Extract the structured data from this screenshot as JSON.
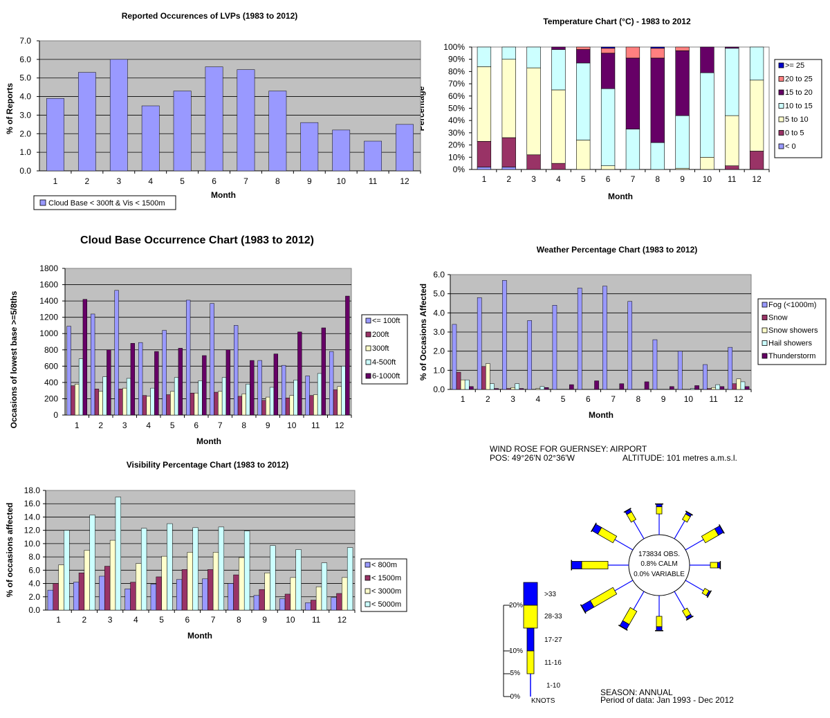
{
  "colors": {
    "plot_bg": "#C0C0C0",
    "periwinkle": "#9999FF",
    "maroon": "#993366",
    "ivory": "#FFFFCC",
    "light_cyan": "#CCFFFF",
    "dark_purple": "#660066",
    "salmon": "#FF8080",
    "navy": "#0000CC",
    "wind_blue": "#0000FF",
    "wind_yellow": "#FFFF00"
  },
  "chart_data": [
    {
      "id": "lvp",
      "type": "bar",
      "title": "Reported Occurences of LVPs (1983 to 2012)",
      "xlabel": "Month",
      "ylabel": "% of Reports",
      "categories": [
        "1",
        "2",
        "3",
        "4",
        "5",
        "6",
        "7",
        "8",
        "9",
        "10",
        "11",
        "12"
      ],
      "ylim": [
        0,
        7
      ],
      "yticks": [
        "0.0",
        "1.0",
        "2.0",
        "3.0",
        "4.0",
        "5.0",
        "6.0",
        "7.0"
      ],
      "grid": true,
      "legend_position": "bottom-left",
      "series": [
        {
          "name": "Cloud Base < 300ft & Vis < 1500m",
          "color": "#9999FF",
          "values": [
            3.9,
            5.3,
            6.0,
            3.5,
            4.3,
            5.6,
            5.45,
            4.3,
            2.6,
            2.2,
            1.6,
            2.5
          ]
        }
      ]
    },
    {
      "id": "temp",
      "type": "bar",
      "stacked": true,
      "title": "Temperature Chart (°C) - 1983 to 2012",
      "xlabel": "Month",
      "ylabel": "Percentage",
      "categories": [
        "1",
        "2",
        "3",
        "4",
        "5",
        "6",
        "7",
        "8",
        "9",
        "10",
        "11",
        "12"
      ],
      "ylim": [
        0,
        100
      ],
      "yticks": [
        "0%",
        "10%",
        "20%",
        "30%",
        "40%",
        "50%",
        "60%",
        "70%",
        "80%",
        "90%",
        "100%"
      ],
      "legend_position": "right",
      "series": [
        {
          "name": "< 0",
          "color": "#9999FF",
          "values": [
            2,
            2,
            0,
            0,
            0,
            0,
            0,
            0,
            0,
            0,
            0,
            0
          ]
        },
        {
          "name": "0 to 5",
          "color": "#993366",
          "values": [
            21,
            24,
            12,
            5,
            0,
            0,
            0,
            0,
            0,
            0,
            3,
            15
          ]
        },
        {
          "name": "5 to 10",
          "color": "#FFFFCC",
          "values": [
            61,
            64,
            71,
            60,
            24,
            3,
            0,
            0,
            1,
            10,
            41,
            58
          ]
        },
        {
          "name": "10 to 15",
          "color": "#CCFFFF",
          "values": [
            16,
            10,
            17,
            33,
            63,
            63,
            33,
            22,
            43,
            69,
            55,
            27
          ]
        },
        {
          "name": "15 to 20",
          "color": "#660066",
          "values": [
            0,
            0,
            0,
            2,
            11,
            29,
            58,
            69,
            53,
            21,
            1,
            0
          ]
        },
        {
          "name": "20 to 25",
          "color": "#FF8080",
          "values": [
            0,
            0,
            0,
            0,
            2,
            4,
            9,
            8,
            3,
            0,
            0,
            0
          ]
        },
        {
          "name": ">= 25",
          "color": "#0000CC",
          "values": [
            0,
            0,
            0,
            0,
            0,
            1,
            0,
            1,
            0,
            0,
            0,
            0
          ]
        }
      ],
      "legend_order": [
        ">= 25",
        "20 to 25",
        "15 to 20",
        "10 to 15",
        "5 to 10",
        "0 to 5",
        "< 0"
      ]
    },
    {
      "id": "cloud",
      "type": "bar",
      "title": "Cloud Base Occurrence Chart (1983 to 2012)",
      "xlabel": "Month",
      "ylabel": "Occasions of lowest base >=5/8ths",
      "categories": [
        "1",
        "2",
        "3",
        "4",
        "5",
        "6",
        "7",
        "8",
        "9",
        "10",
        "11",
        "12"
      ],
      "ylim": [
        0,
        1800
      ],
      "yticks": [
        "0",
        "200",
        "400",
        "600",
        "800",
        "1000",
        "1200",
        "1400",
        "1600",
        "1800"
      ],
      "grid": true,
      "legend_position": "right",
      "series": [
        {
          "name": "<= 100ft",
          "color": "#9999FF",
          "values": [
            1090,
            1240,
            1530,
            890,
            1040,
            1410,
            1370,
            1100,
            670,
            610,
            480,
            780
          ]
        },
        {
          "name": "200ft",
          "color": "#993366",
          "values": [
            360,
            320,
            320,
            240,
            250,
            270,
            280,
            230,
            180,
            210,
            240,
            310
          ]
        },
        {
          "name": "300ft",
          "color": "#FFFFCC",
          "values": [
            380,
            290,
            330,
            230,
            290,
            270,
            290,
            260,
            220,
            240,
            250,
            350
          ]
        },
        {
          "name": "4-500ft",
          "color": "#CCFFFF",
          "values": [
            690,
            470,
            450,
            330,
            460,
            420,
            460,
            380,
            340,
            430,
            510,
            600
          ]
        },
        {
          "name": "6-1000ft",
          "color": "#660066",
          "values": [
            1420,
            800,
            880,
            780,
            820,
            730,
            800,
            670,
            750,
            1020,
            1070,
            1460
          ]
        }
      ]
    },
    {
      "id": "weather",
      "type": "bar",
      "title": "Weather Percentage Chart (1983 to 2012)",
      "xlabel": "Month",
      "ylabel": "% of Occasions Affected",
      "categories": [
        "1",
        "2",
        "3",
        "4",
        "5",
        "6",
        "7",
        "8",
        "9",
        "10",
        "11",
        "12"
      ],
      "ylim": [
        0,
        6
      ],
      "yticks": [
        "0.0",
        "1.0",
        "2.0",
        "3.0",
        "4.0",
        "5.0",
        "6.0"
      ],
      "grid": true,
      "legend_position": "right",
      "series": [
        {
          "name": "Fog (<1000m)",
          "color": "#9999FF",
          "values": [
            3.4,
            4.8,
            5.7,
            3.6,
            4.4,
            5.3,
            5.4,
            4.6,
            2.6,
            2.0,
            1.3,
            2.2
          ]
        },
        {
          "name": "Snow",
          "color": "#993366",
          "values": [
            0.9,
            1.2,
            0.05,
            0.0,
            0.0,
            0.0,
            0.0,
            0.0,
            0.0,
            0.0,
            0.05,
            0.3
          ]
        },
        {
          "name": "Snow showers",
          "color": "#FFFFCC",
          "values": [
            0.5,
            1.35,
            0.1,
            0.05,
            0.0,
            0.0,
            0.0,
            0.0,
            0.0,
            0.0,
            0.1,
            0.55
          ]
        },
        {
          "name": "Hail showers",
          "color": "#CCFFFF",
          "values": [
            0.5,
            0.3,
            0.3,
            0.15,
            0.0,
            0.0,
            0.0,
            0.0,
            0.0,
            0.05,
            0.25,
            0.4
          ]
        },
        {
          "name": "Thunderstorm",
          "color": "#660066",
          "values": [
            0.15,
            0.05,
            0.05,
            0.1,
            0.25,
            0.45,
            0.3,
            0.4,
            0.15,
            0.2,
            0.15,
            0.15
          ]
        }
      ]
    },
    {
      "id": "vis",
      "type": "bar",
      "title": "Visibility Percentage Chart (1983 to 2012)",
      "xlabel": "Month",
      "ylabel": "% of occasions affected",
      "categories": [
        "1",
        "2",
        "3",
        "4",
        "5",
        "6",
        "7",
        "8",
        "9",
        "10",
        "11",
        "12"
      ],
      "ylim": [
        0,
        18
      ],
      "yticks": [
        "0.0",
        "2.0",
        "4.0",
        "6.0",
        "8.0",
        "10.0",
        "12.0",
        "14.0",
        "16.0",
        "18.0"
      ],
      "grid": true,
      "legend_position": "right",
      "series": [
        {
          "name": "< 800m",
          "color": "#9999FF",
          "values": [
            3.0,
            4.2,
            5.1,
            3.2,
            3.9,
            4.6,
            4.7,
            4.0,
            2.2,
            1.7,
            1.1,
            1.9
          ]
        },
        {
          "name": "< 1500m",
          "color": "#993366",
          "values": [
            4.0,
            5.6,
            6.6,
            4.2,
            5.0,
            6.1,
            6.1,
            5.3,
            3.1,
            2.4,
            1.5,
            2.5
          ]
        },
        {
          "name": "< 3000m",
          "color": "#FFFFCC",
          "values": [
            6.8,
            9.0,
            10.5,
            7.0,
            8.1,
            8.7,
            8.7,
            7.9,
            5.6,
            4.9,
            3.5,
            4.9
          ]
        },
        {
          "name": "< 5000m",
          "color": "#CCFFFF",
          "values": [
            12.0,
            14.3,
            17.0,
            12.3,
            13.0,
            12.4,
            12.5,
            11.9,
            9.7,
            9.1,
            7.1,
            9.4
          ]
        }
      ]
    }
  ],
  "wind_rose": {
    "title": "WIND ROSE FOR GUERNSEY:  AIRPORT",
    "position_label": "POS: 49°26'N  02°36'W",
    "altitude_label": "ALTITUDE:  101 metres a.m.s.l.",
    "center_lines": [
      "173834 OBS.",
      "0.8% CALM",
      "0.0% VARIABLE"
    ],
    "season": "SEASON:  ANNUAL",
    "period": "Period of data:  Jan 1993 - Dec 2012",
    "scale_labels": [
      "20%",
      "10%",
      "5%",
      "0%"
    ],
    "speed_labels": [
      ">33",
      "28-33",
      "17-27",
      "11-16",
      "1-10"
    ],
    "units": "KNOTS",
    "directions_deg": [
      0,
      30,
      60,
      90,
      120,
      150,
      180,
      210,
      240,
      270,
      300,
      330
    ],
    "frequency_pct": [
      4.5,
      4.0,
      9.5,
      4.5,
      3.0,
      4.5,
      6.5,
      9.5,
      16.5,
      16.5,
      11.0,
      5.5
    ]
  }
}
